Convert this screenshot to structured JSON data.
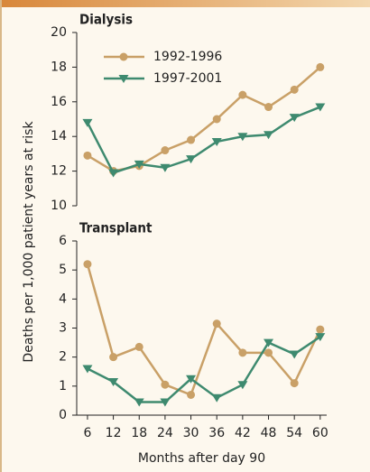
{
  "chart_data": [
    {
      "type": "line",
      "title": "Dialysis",
      "ylabel": "Deaths per 1,000 patient years at risk",
      "x": [
        6,
        12,
        18,
        24,
        30,
        36,
        42,
        48,
        54,
        60
      ],
      "xlim": [
        3.5,
        61.5
      ],
      "ylim": [
        10,
        20
      ],
      "yticks": [
        10,
        12,
        14,
        16,
        18,
        20
      ],
      "series": [
        {
          "name": "1992-1996",
          "color": "#c9a067",
          "marker": "circle",
          "values": [
            12.9,
            12.0,
            12.3,
            13.2,
            13.8,
            15.0,
            16.4,
            15.7,
            16.7,
            18.0
          ]
        },
        {
          "name": "1997-2001",
          "color": "#3e8a6f",
          "marker": "triangle",
          "values": [
            14.8,
            11.9,
            12.4,
            12.2,
            12.7,
            13.7,
            14.0,
            14.1,
            15.1,
            15.7
          ]
        }
      ]
    },
    {
      "type": "line",
      "title": "Transplant",
      "xlabel": "Months after day 90",
      "x": [
        6,
        12,
        18,
        24,
        30,
        36,
        42,
        48,
        54,
        60
      ],
      "xlim": [
        3.5,
        61.5
      ],
      "xticks": [
        6,
        12,
        18,
        24,
        30,
        36,
        42,
        48,
        54,
        60
      ],
      "ylim": [
        0,
        6
      ],
      "yticks": [
        0,
        1,
        2,
        3,
        4,
        5,
        6
      ],
      "series": [
        {
          "color": "#c9a067",
          "marker": "circle",
          "values": [
            5.2,
            2.0,
            2.35,
            1.05,
            0.7,
            3.15,
            2.15,
            2.15,
            1.1,
            2.95
          ]
        },
        {
          "color": "#3e8a6f",
          "marker": "triangle",
          "values": [
            1.6,
            1.15,
            0.45,
            0.45,
            1.25,
            0.6,
            1.05,
            2.5,
            2.1,
            2.7
          ]
        }
      ]
    }
  ]
}
